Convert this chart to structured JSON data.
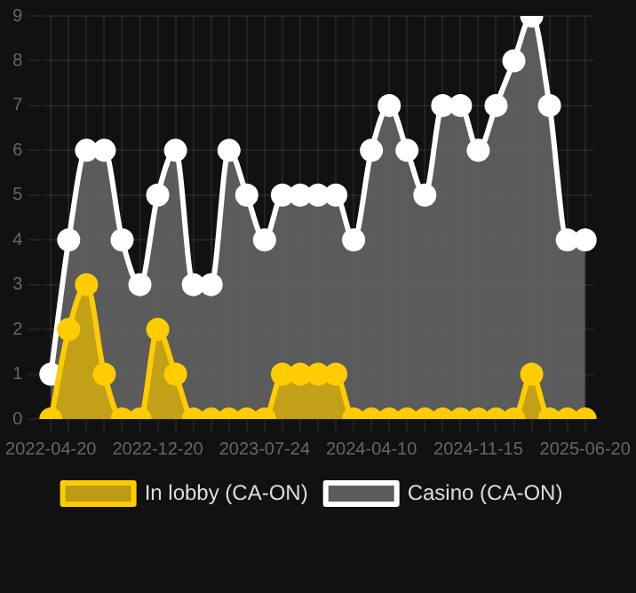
{
  "chart_data": {
    "type": "area",
    "categories": [
      "2022-04-20",
      null,
      null,
      null,
      null,
      null,
      "2022-12-20",
      null,
      null,
      null,
      null,
      null,
      "2023-07-24",
      null,
      null,
      null,
      null,
      null,
      "2024-04-10",
      null,
      null,
      null,
      null,
      null,
      "2024-11-15",
      null,
      null,
      null,
      null,
      null,
      "2025-06-20"
    ],
    "series": [
      {
        "name": "In lobby (CA-ON)",
        "color": "#ffcc00",
        "values": [
          0,
          2,
          3,
          1,
          0,
          0,
          2,
          1,
          0,
          0,
          0,
          0,
          0,
          1,
          1,
          1,
          1,
          0,
          0,
          0,
          0,
          0,
          0,
          0,
          0,
          0,
          0,
          1,
          0,
          0,
          0
        ]
      },
      {
        "name": "Casino (CA-ON)",
        "color": "#ffffff",
        "values": [
          1,
          4,
          6,
          6,
          4,
          3,
          5,
          6,
          3,
          3,
          6,
          5,
          4,
          5,
          5,
          5,
          5,
          4,
          6,
          7,
          6,
          5,
          7,
          7,
          6,
          7,
          8,
          9,
          7,
          4,
          4
        ]
      }
    ],
    "ylim": [
      0,
      9
    ],
    "yticks": [
      0,
      1,
      2,
      3,
      4,
      5,
      6,
      7,
      8,
      9
    ],
    "grid": true,
    "legend": "bottom",
    "marker": "circle"
  }
}
